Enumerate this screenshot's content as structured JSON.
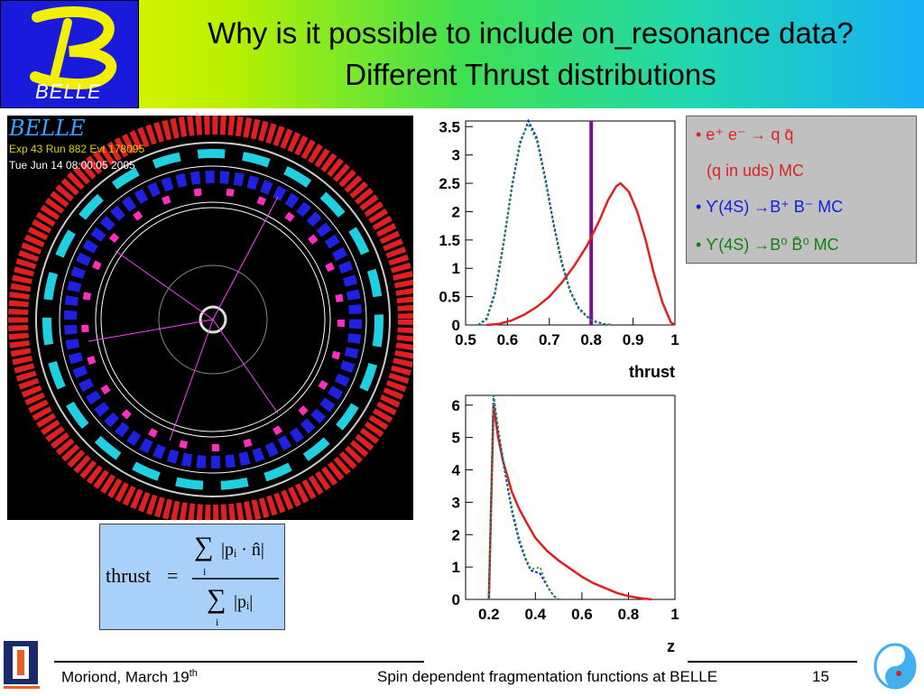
{
  "header": {
    "logo_text": "BELLE",
    "title_line1": "Why is it possible to include on_resonance data?",
    "title_line2": "Different Thrust distributions"
  },
  "event_display": {
    "label": "BELLE",
    "info_line1": "Exp 43 Run 882 Evt 178095",
    "info_line2": "Tue Jun 14 08:00:05 2005"
  },
  "legend": {
    "item1_line1": "• e⁺ e⁻ → q q̄",
    "item1_line2": "(q in uds) MC",
    "item2": "• ϒ(4S) →B⁺ B⁻ MC",
    "item3": "• ϒ(4S) →B⁰ B̄⁰ MC"
  },
  "formula": {
    "lhs": "thrust",
    "equals": "=",
    "numerator_sum": "∑",
    "numerator_body": "|pᵢ · n̂|",
    "denominator_sum": "∑",
    "denominator_body": "|pᵢ|",
    "index": "i"
  },
  "footer": {
    "left_text": "Moriond, March 19",
    "left_sup": "th",
    "center": "Spin dependent fragmentation functions at BELLE",
    "page": "15"
  },
  "colors": {
    "qq": "#e02020",
    "bpbm": "#1020e0",
    "b0b0": "#20a020",
    "cut": "#7a1090"
  },
  "chart_data": [
    {
      "type": "line",
      "xlabel": "thrust",
      "ylabel": "",
      "xlim": [
        0.5,
        1.0
      ],
      "ylim": [
        0,
        3.6
      ],
      "xticks": [
        "0.5",
        "0.6",
        "0.7",
        "0.8",
        "0.9",
        "1"
      ],
      "yticks": [
        "0",
        "0.5",
        "1",
        "1.5",
        "2",
        "2.5",
        "3",
        "3.5"
      ],
      "cut_x": 0.8,
      "series": [
        {
          "name": "e+e- → qq̄ (q in uds) MC",
          "color": "#e02020",
          "x": [
            0.55,
            0.58,
            0.61,
            0.64,
            0.67,
            0.7,
            0.73,
            0.76,
            0.79,
            0.82,
            0.84,
            0.86,
            0.87,
            0.89,
            0.91,
            0.93,
            0.95,
            0.97,
            0.99,
            1.0
          ],
          "y": [
            0,
            0.02,
            0.08,
            0.18,
            0.32,
            0.5,
            0.75,
            1.05,
            1.4,
            1.85,
            2.2,
            2.45,
            2.5,
            2.35,
            2.0,
            1.5,
            0.9,
            0.4,
            0.05,
            0
          ]
        },
        {
          "name": "ϒ(4S) → B+B- MC",
          "color": "#1020e0",
          "x": [
            0.53,
            0.55,
            0.57,
            0.59,
            0.61,
            0.63,
            0.65,
            0.67,
            0.69,
            0.71,
            0.73,
            0.75,
            0.77,
            0.79,
            0.81,
            0.83,
            0.85
          ],
          "y": [
            0,
            0.1,
            0.55,
            1.4,
            2.4,
            3.2,
            3.6,
            3.3,
            2.6,
            1.8,
            1.1,
            0.6,
            0.3,
            0.15,
            0.06,
            0.02,
            0
          ]
        },
        {
          "name": "ϒ(4S) → B0B̄0 MC",
          "color": "#20a020",
          "x": [
            0.53,
            0.55,
            0.57,
            0.59,
            0.61,
            0.63,
            0.65,
            0.67,
            0.69,
            0.71,
            0.73,
            0.75,
            0.77,
            0.79,
            0.81,
            0.83,
            0.85
          ],
          "y": [
            0,
            0.12,
            0.6,
            1.45,
            2.45,
            3.25,
            3.55,
            3.25,
            2.55,
            1.75,
            1.05,
            0.58,
            0.28,
            0.14,
            0.05,
            0.02,
            0
          ]
        }
      ]
    },
    {
      "type": "line",
      "xlabel": "z",
      "ylabel": "",
      "xlim": [
        0.1,
        1.0
      ],
      "ylim": [
        0,
        6.3
      ],
      "xticks": [
        "0.2",
        "0.4",
        "0.6",
        "0.8",
        "1"
      ],
      "yticks": [
        "0",
        "1",
        "2",
        "3",
        "4",
        "5",
        "6"
      ],
      "series": [
        {
          "name": "e+e- → qq̄ (q in uds) MC",
          "color": "#e02020",
          "x": [
            0.2,
            0.22,
            0.24,
            0.26,
            0.28,
            0.3,
            0.33,
            0.36,
            0.4,
            0.45,
            0.5,
            0.55,
            0.6,
            0.65,
            0.7,
            0.75,
            0.8,
            0.85,
            0.9
          ],
          "y": [
            0,
            6.0,
            5.0,
            4.3,
            3.8,
            3.3,
            2.8,
            2.4,
            1.9,
            1.5,
            1.2,
            0.95,
            0.7,
            0.5,
            0.35,
            0.2,
            0.1,
            0.04,
            0
          ]
        },
        {
          "name": "ϒ(4S) → B+B- MC",
          "color": "#1020e0",
          "x": [
            0.2,
            0.22,
            0.24,
            0.26,
            0.28,
            0.3,
            0.33,
            0.36,
            0.38,
            0.4,
            0.42,
            0.44,
            0.46,
            0.48,
            0.5
          ],
          "y": [
            0,
            6.3,
            5.2,
            4.3,
            3.5,
            2.7,
            1.8,
            1.2,
            0.9,
            0.85,
            0.8,
            0.55,
            0.3,
            0.1,
            0
          ]
        },
        {
          "name": "ϒ(4S) → B0B̄0 MC",
          "color": "#20a020",
          "x": [
            0.2,
            0.22,
            0.24,
            0.26,
            0.28,
            0.3,
            0.33,
            0.36,
            0.38,
            0.4,
            0.42,
            0.44,
            0.46,
            0.48,
            0.5
          ],
          "y": [
            0,
            6.3,
            5.3,
            4.4,
            3.6,
            2.8,
            1.9,
            1.25,
            0.95,
            0.95,
            1.0,
            0.6,
            0.3,
            0.1,
            0
          ]
        }
      ]
    }
  ]
}
